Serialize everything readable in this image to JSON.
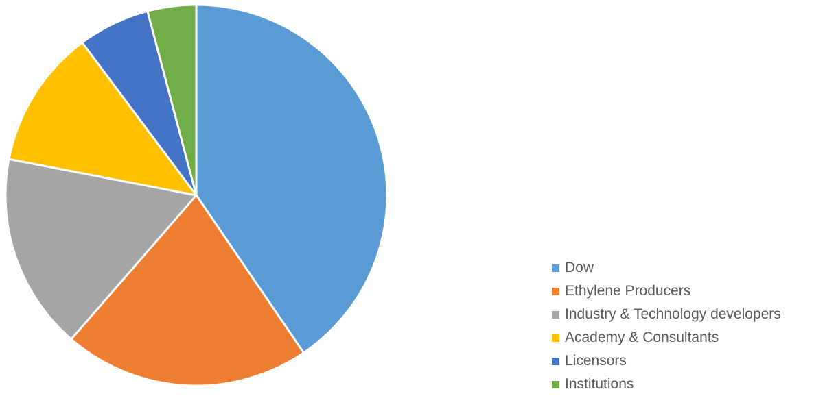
{
  "chart_data": {
    "type": "pie",
    "categories": [
      "Dow",
      "Ethylene Producers",
      "Industry & Technology developers",
      "Academy & Consultants",
      "Licensors",
      "Institutions"
    ],
    "values": [
      41.3,
      21.3,
      17.0,
      12.0,
      6.2,
      4.2
    ],
    "colors": [
      "#5B9BD5",
      "#ED7D31",
      "#A5A5A5",
      "#FFC000",
      "#4472C4",
      "#70AD47"
    ],
    "legend_position": "bottom-right",
    "title": ""
  }
}
